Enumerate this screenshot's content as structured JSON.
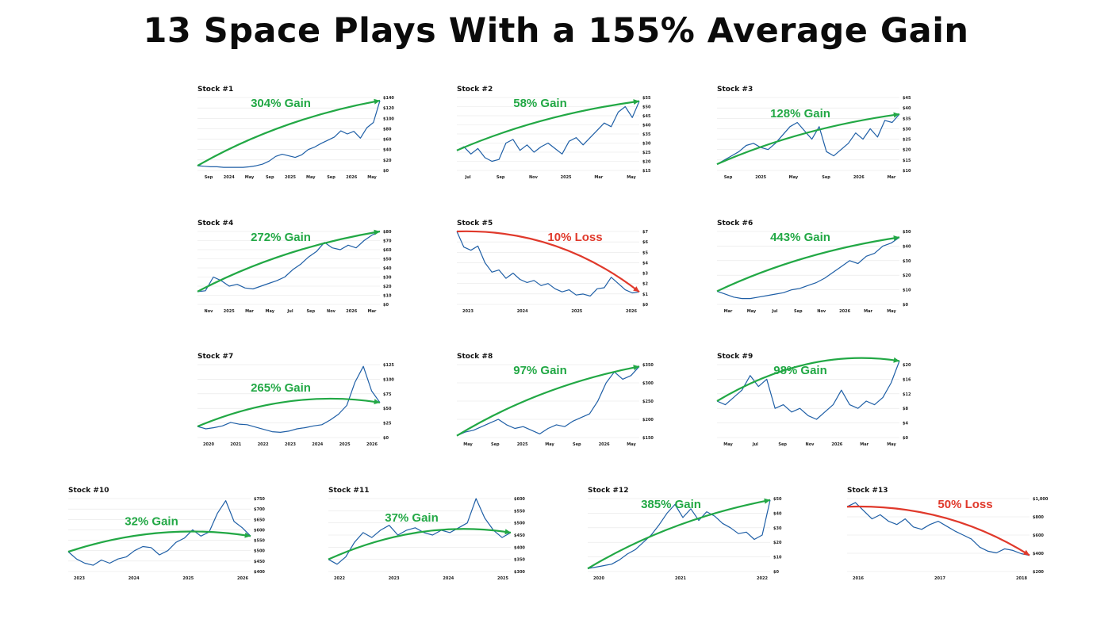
{
  "title": "13 Space Plays With a 155% Average Gain",
  "colors": {
    "series": "#1f5fa6",
    "gain": "#22a845",
    "loss": "#e0392b"
  },
  "chart_data": [
    {
      "type": "line",
      "title": "Stock #1",
      "label": "304% Gain",
      "direction": "up",
      "xlabels": [
        "Sep",
        "2024",
        "May",
        "Sep",
        "2025",
        "May",
        "Sep",
        "2026",
        "May"
      ],
      "yticks": [
        "$0",
        "$20",
        "$40",
        "$60",
        "$80",
        "$100",
        "$120",
        "$140"
      ],
      "ylim": [
        0,
        140
      ],
      "values": [
        9,
        8,
        7,
        7,
        6,
        6,
        6,
        6,
        7,
        9,
        12,
        18,
        27,
        31,
        28,
        25,
        30,
        40,
        45,
        52,
        58,
        64,
        76,
        70,
        75,
        62,
        82,
        92,
        134
      ]
    },
    {
      "type": "line",
      "title": "Stock #2",
      "label": "58% Gain",
      "direction": "up",
      "xlabels": [
        "Jul",
        "Sep",
        "Nov",
        "2025",
        "Mar",
        "May"
      ],
      "yticks": [
        "$15",
        "$20",
        "$25",
        "$30",
        "$35",
        "$40",
        "$45",
        "$50",
        "$55"
      ],
      "ylim": [
        15,
        55
      ],
      "values": [
        26,
        28,
        24,
        27,
        22,
        20,
        21,
        30,
        32,
        26,
        29,
        25,
        28,
        30,
        27,
        24,
        31,
        33,
        29,
        33,
        37,
        41,
        39,
        47,
        50,
        44,
        53
      ]
    },
    {
      "type": "line",
      "title": "Stock #3",
      "label": "128% Gain",
      "direction": "up",
      "xlabels": [
        "Sep",
        "2025",
        "May",
        "Sep",
        "2026",
        "Mar"
      ],
      "yticks": [
        "$10",
        "$15",
        "$20",
        "$25",
        "$30",
        "$35",
        "$40",
        "$45"
      ],
      "ylim": [
        10,
        45
      ],
      "values": [
        13,
        15,
        17,
        19,
        22,
        23,
        21,
        20,
        23,
        27,
        31,
        33,
        29,
        25,
        31,
        19,
        17,
        20,
        23,
        28,
        25,
        30,
        26,
        34,
        33,
        37
      ]
    },
    {
      "type": "line",
      "title": "Stock #4",
      "label": "272% Gain",
      "direction": "up",
      "xlabels": [
        "Nov",
        "2025",
        "Mar",
        "May",
        "Jul",
        "Sep",
        "Nov",
        "2026",
        "Mar"
      ],
      "yticks": [
        "$0",
        "$10",
        "$20",
        "$30",
        "$40",
        "$50",
        "$60",
        "$70",
        "$80"
      ],
      "ylim": [
        0,
        80
      ],
      "values": [
        14,
        15,
        30,
        26,
        20,
        22,
        18,
        17,
        20,
        23,
        26,
        30,
        38,
        44,
        52,
        58,
        68,
        62,
        60,
        65,
        62,
        70,
        76,
        80
      ]
    },
    {
      "type": "line",
      "title": "Stock #5",
      "label": "10% Loss",
      "direction": "down",
      "xlabels": [
        "2023",
        "2024",
        "2025",
        "2026"
      ],
      "yticks": [
        "$0",
        "$1",
        "$2",
        "$3",
        "$4",
        "$5",
        "$6",
        "$7"
      ],
      "ylim": [
        0,
        7
      ],
      "values": [
        7.0,
        5.5,
        5.2,
        5.6,
        4.0,
        3.1,
        3.3,
        2.5,
        3.0,
        2.4,
        2.1,
        2.3,
        1.8,
        2.0,
        1.5,
        1.2,
        1.4,
        0.9,
        1.0,
        0.8,
        1.5,
        1.6,
        2.6,
        2.0,
        1.4,
        1.1,
        1.2
      ]
    },
    {
      "type": "line",
      "title": "Stock #6",
      "label": "443% Gain",
      "direction": "up",
      "xlabels": [
        "Mar",
        "May",
        "Jul",
        "Sep",
        "Nov",
        "2026",
        "Mar",
        "May"
      ],
      "yticks": [
        "$0",
        "$10",
        "$20",
        "$30",
        "$40",
        "$50"
      ],
      "ylim": [
        0,
        50
      ],
      "values": [
        9,
        7,
        5,
        4,
        4,
        5,
        6,
        7,
        8,
        10,
        11,
        13,
        15,
        18,
        22,
        26,
        30,
        28,
        33,
        35,
        40,
        42,
        46
      ]
    },
    {
      "type": "line",
      "title": "Stock #7",
      "label": "265% Gain",
      "direction": "flat",
      "xlabels": [
        "2020",
        "2021",
        "2022",
        "2023",
        "2024",
        "2025",
        "2026"
      ],
      "yticks": [
        "$0",
        "$25",
        "$50",
        "$75",
        "$100",
        "$125"
      ],
      "ylim": [
        0,
        125
      ],
      "values": [
        19,
        15,
        17,
        20,
        26,
        23,
        22,
        18,
        14,
        10,
        9,
        11,
        15,
        17,
        20,
        22,
        30,
        40,
        55,
        95,
        122,
        80,
        60
      ]
    },
    {
      "type": "line",
      "title": "Stock #8",
      "label": "97% Gain",
      "direction": "up",
      "xlabels": [
        "May",
        "Sep",
        "2025",
        "May",
        "Sep",
        "2026",
        "May"
      ],
      "yticks": [
        "$150",
        "$200",
        "$250",
        "$300",
        "$350"
      ],
      "ylim": [
        150,
        350
      ],
      "values": [
        155,
        165,
        170,
        180,
        190,
        200,
        185,
        175,
        180,
        170,
        160,
        175,
        185,
        180,
        195,
        205,
        215,
        250,
        300,
        330,
        310,
        320,
        345
      ]
    },
    {
      "type": "line",
      "title": "Stock #9",
      "label": "98% Gain",
      "direction": "flat",
      "xlabels": [
        "May",
        "Jul",
        "Sep",
        "Nov",
        "2026",
        "Mar",
        "May"
      ],
      "yticks": [
        "$0",
        "$4",
        "$8",
        "$12",
        "$16",
        "$20"
      ],
      "ylim": [
        0,
        20
      ],
      "values": [
        10,
        9,
        11,
        13,
        17,
        14,
        16,
        8,
        9,
        7,
        8,
        6,
        5,
        7,
        9,
        13,
        9,
        8,
        10,
        9,
        11,
        15,
        21
      ]
    },
    {
      "type": "line",
      "title": "Stock #10",
      "label": "32% Gain",
      "direction": "flat",
      "xlabels": [
        "2023",
        "2024",
        "2025",
        "2026"
      ],
      "yticks": [
        "$400",
        "$450",
        "$500",
        "$550",
        "$600",
        "$650",
        "$700",
        "$750"
      ],
      "ylim": [
        400,
        750
      ],
      "values": [
        495,
        460,
        440,
        430,
        455,
        440,
        460,
        470,
        500,
        520,
        515,
        480,
        500,
        540,
        560,
        600,
        570,
        590,
        680,
        740,
        640,
        610,
        570
      ]
    },
    {
      "type": "line",
      "title": "Stock #11",
      "label": "37% Gain",
      "direction": "flat",
      "xlabels": [
        "2022",
        "2023",
        "2024",
        "2025"
      ],
      "yticks": [
        "$300",
        "$350",
        "$400",
        "$450",
        "$500",
        "$550",
        "$600"
      ],
      "ylim": [
        300,
        600
      ],
      "values": [
        350,
        330,
        360,
        420,
        460,
        440,
        470,
        490,
        450,
        470,
        480,
        460,
        450,
        470,
        460,
        480,
        500,
        600,
        520,
        470,
        440,
        460
      ]
    },
    {
      "type": "line",
      "title": "Stock #12",
      "label": "385% Gain",
      "direction": "up",
      "xlabels": [
        "2020",
        "2021",
        "2022"
      ],
      "yticks": [
        "$0",
        "$10",
        "$20",
        "$30",
        "$40",
        "$50"
      ],
      "ylim": [
        0,
        50
      ],
      "values": [
        2,
        3,
        4,
        5,
        8,
        12,
        15,
        20,
        25,
        32,
        40,
        46,
        37,
        43,
        35,
        41,
        38,
        33,
        30,
        26,
        27,
        22,
        25,
        49
      ]
    },
    {
      "type": "line",
      "title": "Stock #13",
      "label": "50% Loss",
      "direction": "down",
      "xlabels": [
        "2016",
        "2017",
        "2018"
      ],
      "yticks": [
        "$200",
        "$400",
        "$600",
        "$800",
        "$1,000"
      ],
      "ylim": [
        200,
        1100
      ],
      "values": [
        1000,
        1050,
        950,
        850,
        900,
        820,
        780,
        850,
        750,
        720,
        780,
        820,
        760,
        700,
        650,
        600,
        500,
        450,
        430,
        480,
        460,
        420,
        400
      ]
    }
  ]
}
